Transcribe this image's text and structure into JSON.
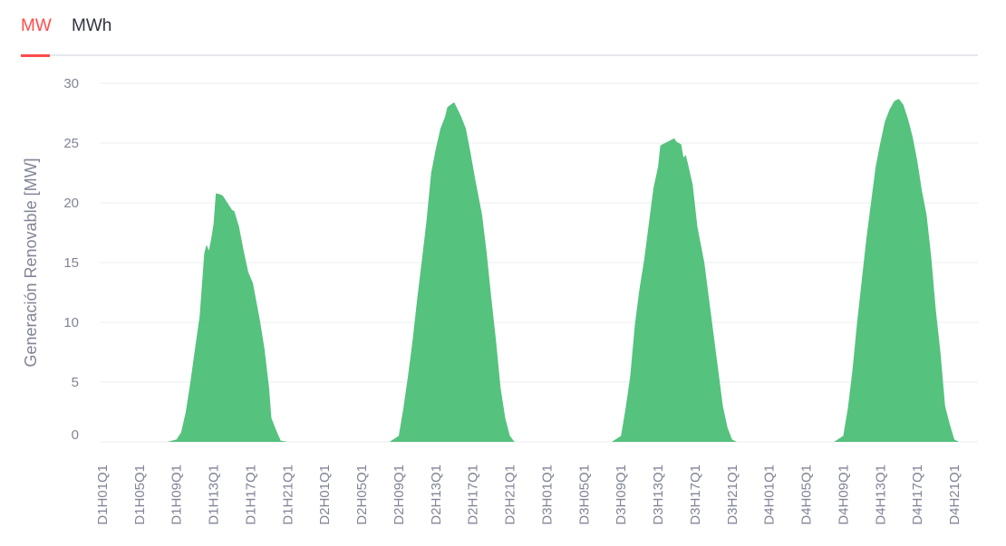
{
  "tabs": [
    {
      "label": "MW",
      "active": true
    },
    {
      "label": "MWh",
      "active": false
    }
  ],
  "colors": {
    "accent": "#ff4b4b",
    "area": "#4cbf77",
    "tab_text": "#31333f",
    "axis_text": "#808495"
  },
  "chart_data": {
    "type": "area",
    "title": "",
    "xlabel": "",
    "ylabel": "Generación Renovable [MW]",
    "ylim": [
      0,
      30
    ],
    "yticks": [
      0,
      5,
      10,
      15,
      20,
      25,
      30
    ],
    "grid": true,
    "legend": "none",
    "x_tick_labels": [
      "D1H01Q1",
      "D1H05Q1",
      "D1H09Q1",
      "D1H13Q1",
      "D1H17Q1",
      "D1H21Q1",
      "D2H01Q1",
      "D2H05Q1",
      "D2H09Q1",
      "D2H13Q1",
      "D2H17Q1",
      "D2H21Q1",
      "D3H01Q1",
      "D3H05Q1",
      "D3H09Q1",
      "D3H13Q1",
      "D3H17Q1",
      "D3H21Q1",
      "D4H01Q1",
      "D4H05Q1",
      "D4H09Q1",
      "D4H13Q1",
      "D4H17Q1",
      "D4H21Q1"
    ],
    "series": [
      {
        "color": "#4cbf77",
        "points": [
          [
            "D1H01Q1",
            0
          ],
          [
            "D1H08Q1",
            0
          ],
          [
            "D1H09Q1",
            0.2
          ],
          [
            "D1H09Q3",
            0.8
          ],
          [
            "D1H10Q1",
            2.5
          ],
          [
            "D1H10Q3",
            5
          ],
          [
            "D1H11Q1",
            7.8
          ],
          [
            "D1H11Q3",
            10.5
          ],
          [
            "D1H12Q1",
            15.8
          ],
          [
            "D1H12Q2",
            16.5
          ],
          [
            "D1H12Q3",
            16
          ],
          [
            "D1H12Q4",
            17
          ],
          [
            "D1H13Q1",
            18.2
          ],
          [
            "D1H13Q2",
            20.8
          ],
          [
            "D1H13Q4",
            20.7
          ],
          [
            "D1H14Q1",
            20.6
          ],
          [
            "D1H14Q3",
            20
          ],
          [
            "D1H15Q1",
            19.4
          ],
          [
            "D1H15Q2",
            19.3
          ],
          [
            "D1H15Q4",
            18
          ],
          [
            "D1H16Q2",
            16
          ],
          [
            "D1H16Q4",
            14.2
          ],
          [
            "D1H17Q2",
            13.3
          ],
          [
            "D1H18Q1",
            10.2
          ],
          [
            "D1H18Q3",
            7.8
          ],
          [
            "D1H19Q1",
            4.5
          ],
          [
            "D1H19Q2",
            2
          ],
          [
            "D1H19Q4",
            1
          ],
          [
            "D1H20Q2",
            0.1
          ],
          [
            "D1H21Q1",
            0
          ],
          [
            "D2H08Q1",
            0
          ],
          [
            "D2H09Q1",
            0.5
          ],
          [
            "D2H09Q3",
            2.8
          ],
          [
            "D2H10Q1",
            5.5
          ],
          [
            "D2H10Q3",
            8.5
          ],
          [
            "D2H11Q1",
            12
          ],
          [
            "D2H11Q3",
            15.2
          ],
          [
            "D2H12Q1",
            18.5
          ],
          [
            "D2H12Q3",
            22.5
          ],
          [
            "D2H13Q1",
            24.5
          ],
          [
            "D2H13Q3",
            26.2
          ],
          [
            "D2H14Q1",
            27.2
          ],
          [
            "D2H14Q2",
            28
          ],
          [
            "D2H14Q4",
            28.3
          ],
          [
            "D2H15Q1",
            28.4
          ],
          [
            "D2H15Q2",
            28
          ],
          [
            "D2H15Q4",
            27.2
          ],
          [
            "D2H16Q2",
            26.2
          ],
          [
            "D2H16Q4",
            24.2
          ],
          [
            "D2H17Q2",
            22
          ],
          [
            "D2H18Q1",
            19
          ],
          [
            "D2H18Q3",
            15.8
          ],
          [
            "D2H19Q1",
            12
          ],
          [
            "D2H19Q3",
            8.5
          ],
          [
            "D2H20Q1",
            4.5
          ],
          [
            "D2H20Q3",
            2
          ],
          [
            "D2H21Q1",
            0.5
          ],
          [
            "D2H21Q3",
            0
          ],
          [
            "D3H08Q1",
            0
          ],
          [
            "D3H09Q1",
            0.5
          ],
          [
            "D3H09Q3",
            2.8
          ],
          [
            "D3H10Q1",
            5.5
          ],
          [
            "D3H10Q3",
            9.8
          ],
          [
            "D3H11Q1",
            12.8
          ],
          [
            "D3H11Q3",
            15.2
          ],
          [
            "D3H12Q1",
            18.2
          ],
          [
            "D3H12Q3",
            21.2
          ],
          [
            "D3H13Q1",
            23
          ],
          [
            "D3H13Q2",
            24.8
          ],
          [
            "D3H13Q4",
            25
          ],
          [
            "D3H14Q2",
            25.2
          ],
          [
            "D3H14Q4",
            25.4
          ],
          [
            "D3H15Q1",
            25.1
          ],
          [
            "D3H15Q3",
            24.9
          ],
          [
            "D3H15Q4",
            23.8
          ],
          [
            "D3H16Q1",
            24
          ],
          [
            "D3H16Q2",
            23.2
          ],
          [
            "D3H16Q4",
            21.5
          ],
          [
            "D3H17Q2",
            18
          ],
          [
            "D3H18Q1",
            15
          ],
          [
            "D3H18Q3",
            12
          ],
          [
            "D3H19Q1",
            9
          ],
          [
            "D3H19Q3",
            6
          ],
          [
            "D3H20Q1",
            3
          ],
          [
            "D3H20Q3",
            1.2
          ],
          [
            "D3H21Q1",
            0.2
          ],
          [
            "D3H21Q3",
            0
          ],
          [
            "D4H08Q1",
            0
          ],
          [
            "D4H09Q1",
            0.5
          ],
          [
            "D4H09Q3",
            2.8
          ],
          [
            "D4H10Q1",
            6
          ],
          [
            "D4H10Q3",
            10
          ],
          [
            "D4H11Q1",
            13.5
          ],
          [
            "D4H11Q3",
            17
          ],
          [
            "D4H12Q1",
            20
          ],
          [
            "D4H12Q3",
            23
          ],
          [
            "D4H13Q1",
            25
          ],
          [
            "D4H13Q3",
            26.8
          ],
          [
            "D4H14Q1",
            27.8
          ],
          [
            "D4H14Q3",
            28.5
          ],
          [
            "D4H15Q1",
            28.7
          ],
          [
            "D4H15Q3",
            28.2
          ],
          [
            "D4H16Q1",
            27
          ],
          [
            "D4H16Q3",
            25.5
          ],
          [
            "D4H17Q1",
            23.5
          ],
          [
            "D4H17Q3",
            21
          ],
          [
            "D4H18Q1",
            19
          ],
          [
            "D4H18Q3",
            15.5
          ],
          [
            "D4H19Q1",
            11
          ],
          [
            "D4H19Q3",
            7.5
          ],
          [
            "D4H20Q1",
            3
          ],
          [
            "D4H20Q3",
            1.5
          ],
          [
            "D4H21Q1",
            0.2
          ],
          [
            "D4H21Q3",
            0
          ]
        ]
      }
    ]
  }
}
